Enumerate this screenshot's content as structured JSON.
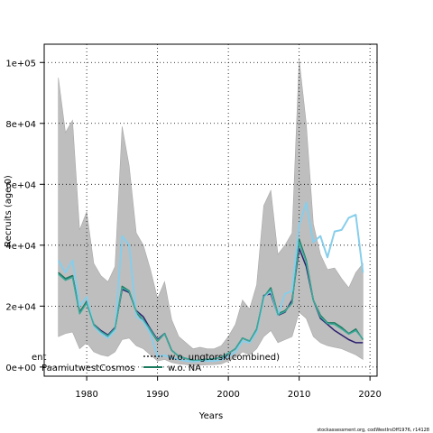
{
  "chart_data": {
    "type": "line",
    "title": "",
    "xlabel": "Years",
    "ylabel": "Recruits (age 0)",
    "xlim": [
      1974,
      2021
    ],
    "ylim": [
      -3000,
      106000
    ],
    "x_ticks": [
      1980,
      1990,
      2000,
      2010,
      2020
    ],
    "x_tick_labels": [
      "1980",
      "1990",
      "2000",
      "2010",
      "2020"
    ],
    "y_ticks": [
      0,
      20000,
      40000,
      60000,
      80000,
      100000
    ],
    "y_tick_labels": [
      "0e+00",
      "2e+04",
      "4e+04",
      "6e+04",
      "8e+04",
      "1e+05"
    ],
    "grid": true,
    "years": [
      1976,
      1977,
      1978,
      1979,
      1980,
      1981,
      1982,
      1983,
      1984,
      1985,
      1986,
      1987,
      1988,
      1989,
      1990,
      1991,
      1992,
      1993,
      1994,
      1995,
      1996,
      1997,
      1998,
      1999,
      2000,
      2001,
      2002,
      2003,
      2004,
      2005,
      2006,
      2007,
      2008,
      2009,
      2010,
      2011,
      2012,
      2013,
      2014,
      2015,
      2016,
      2017,
      2018,
      2019
    ],
    "band": {
      "upper": [
        95000,
        77000,
        81000,
        45000,
        51000,
        34000,
        30000,
        28000,
        33000,
        79000,
        66000,
        44000,
        40000,
        32000,
        22500,
        28000,
        15500,
        10000,
        8000,
        6000,
        6500,
        6000,
        6000,
        7000,
        10000,
        14000,
        22000,
        19000,
        27000,
        53000,
        58000,
        37000,
        40000,
        44000,
        101000,
        80000,
        47000,
        37000,
        32000,
        32500,
        29000,
        26000,
        31000,
        34000
      ],
      "lower": [
        10000,
        11000,
        11500,
        6000,
        8000,
        5000,
        4000,
        3500,
        5000,
        9000,
        9500,
        7000,
        6000,
        4000,
        2000,
        2500,
        1500,
        1000,
        800,
        500,
        600,
        700,
        800,
        1000,
        2000,
        3000,
        5000,
        4000,
        6000,
        10000,
        12000,
        8000,
        9000,
        10000,
        18000,
        16000,
        10000,
        8000,
        7000,
        6500,
        6000,
        5000,
        4000,
        2500
      ],
      "color": "#bebebe"
    },
    "series": [
      {
        "name": "w.o. ungtorsk(combined)",
        "color": "#2a1f6e",
        "width": 1.5,
        "values": [
          31000,
          29000,
          30000,
          18000,
          21500,
          14000,
          12000,
          10500,
          13000,
          25500,
          24500,
          18500,
          16500,
          12500,
          9000,
          11000,
          5500,
          3500,
          2800,
          2200,
          2300,
          2500,
          2700,
          3200,
          4500,
          6000,
          9500,
          8500,
          12000,
          23500,
          24000,
          17000,
          18000,
          22000,
          39000,
          33000,
          22000,
          16000,
          14000,
          12000,
          10500,
          9000,
          8000,
          8000
        ]
      },
      {
        "name": "w.o. NA",
        "color": "#1a7a5e",
        "width": 1.5,
        "values": [
          31000,
          29000,
          30000,
          18000,
          21500,
          14000,
          11500,
          10000,
          12500,
          26500,
          25000,
          18000,
          15000,
          12000,
          8500,
          11000,
          5500,
          3500,
          2800,
          2200,
          2300,
          2500,
          2700,
          3200,
          4500,
          6000,
          9500,
          8500,
          12500,
          23000,
          26000,
          17500,
          18500,
          21000,
          42000,
          35000,
          22000,
          17000,
          14500,
          14500,
          13000,
          11000,
          12500,
          9000
        ]
      },
      {
        "name": "",
        "color": "#87ceeb",
        "width": 2,
        "values": [
          35000,
          31000,
          35000,
          20000,
          23000,
          13500,
          11000,
          9500,
          12000,
          43000,
          40000,
          16500,
          15000,
          11000,
          3500,
          3800,
          3000,
          2500,
          2000,
          1800,
          2000,
          2000,
          2000,
          2400,
          3500,
          5000,
          8500,
          8000,
          11500,
          23000,
          25000,
          17000,
          24000,
          25000,
          46500,
          54000,
          41000,
          43000,
          36000,
          44500,
          45000,
          49000,
          50000,
          31000
        ]
      },
      {
        "name": "",
        "color": "#3ca89a",
        "width": 1.5,
        "values": [
          30500,
          28500,
          29500,
          17500,
          21000,
          13800,
          11600,
          10200,
          12700,
          26000,
          24800,
          18200,
          15500,
          12200,
          8700,
          10900,
          5500,
          3500,
          2800,
          2200,
          2300,
          2500,
          2700,
          3200,
          4500,
          6000,
          9500,
          8500,
          12300,
          23200,
          25500,
          17200,
          18200,
          21200,
          41000,
          34500,
          22000,
          16500,
          14300,
          14000,
          12500,
          10800,
          12000,
          9200
        ]
      }
    ],
    "legend": {
      "placement": "bottom-left",
      "entries": [
        {
          "label": "ent",
          "style": "none"
        },
        {
          "label": "PaamiutwestCosmos",
          "style": "none"
        },
        {
          "label": "w.o. ungtorsk(combined)",
          "style": "dotted"
        },
        {
          "label": "w.o. NA",
          "style": "solid"
        }
      ]
    },
    "credit": "stockassessment.org, codWestIrsOff1976, r14128"
  }
}
